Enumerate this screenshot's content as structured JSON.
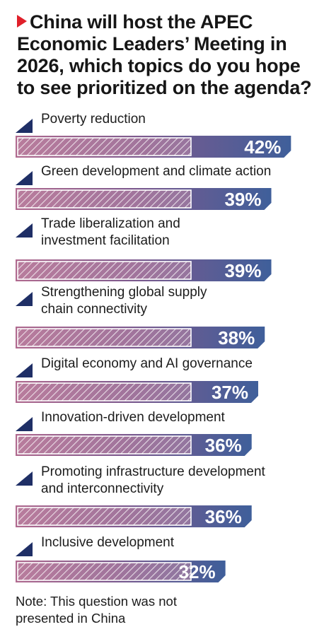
{
  "title": "China will host the APEC Economic Leaders’ Meeting in 2026, which topics do you hope to see prioritized on the agenda?",
  "note": "Note: This question was not presented in China",
  "colors": {
    "accent_red": "#e0202a",
    "bar_purple": "#8c5a86",
    "bar_blue": "#3f5f9a",
    "marker_navy": "#1f2f66"
  },
  "chart_data": {
    "type": "bar",
    "orientation": "horizontal",
    "categories": [
      [
        "Poverty reduction"
      ],
      [
        "Green development and climate action"
      ],
      [
        "Trade liberalization and",
        "investment facilitation"
      ],
      [
        "Strengthening global supply",
        "chain connectivity"
      ],
      [
        "Digital economy and AI governance"
      ],
      [
        "Innovation-driven development"
      ],
      [
        "Promoting infrastructure development",
        "and interconnectivity"
      ],
      [
        "Inclusive development"
      ]
    ],
    "values": [
      42,
      39,
      39,
      38,
      37,
      36,
      36,
      32
    ],
    "value_labels": [
      "42%",
      "39%",
      "39%",
      "38%",
      "37%",
      "36%",
      "36%",
      "32%"
    ],
    "unit": "%",
    "xlim": [
      0,
      100
    ],
    "grid": false,
    "legend": "none"
  }
}
